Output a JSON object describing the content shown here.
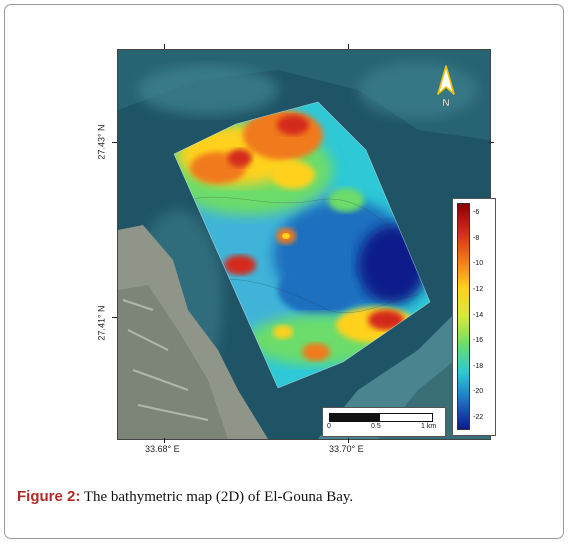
{
  "figure": {
    "caption_label": "Figure 2:",
    "caption_text": " The bathymetric map (2D) of El-Gouna Bay."
  },
  "map": {
    "lat_labels": [
      "27.43° N",
      "27.41° N"
    ],
    "lon_labels": [
      "33.68° E",
      "33.70° E"
    ],
    "north_label": "N",
    "legend": {
      "labels": [
        "-6",
        "-8",
        "-10",
        "-12",
        "-14",
        "-16",
        "-18",
        "-20",
        "-22"
      ],
      "colors": [
        "#8b0000",
        "#d42a1c",
        "#f07a1c",
        "#ffd11a",
        "#d8e83a",
        "#6cdc6a",
        "#2ec8d6",
        "#1f6fbf",
        "#0a1a8a"
      ]
    },
    "scale_bar": {
      "labels": [
        "0",
        "0.5",
        "1 km"
      ]
    },
    "colors": {
      "sea": "#1d4f62",
      "shallow": "#3d7a86",
      "land": "#a5a89a"
    }
  }
}
